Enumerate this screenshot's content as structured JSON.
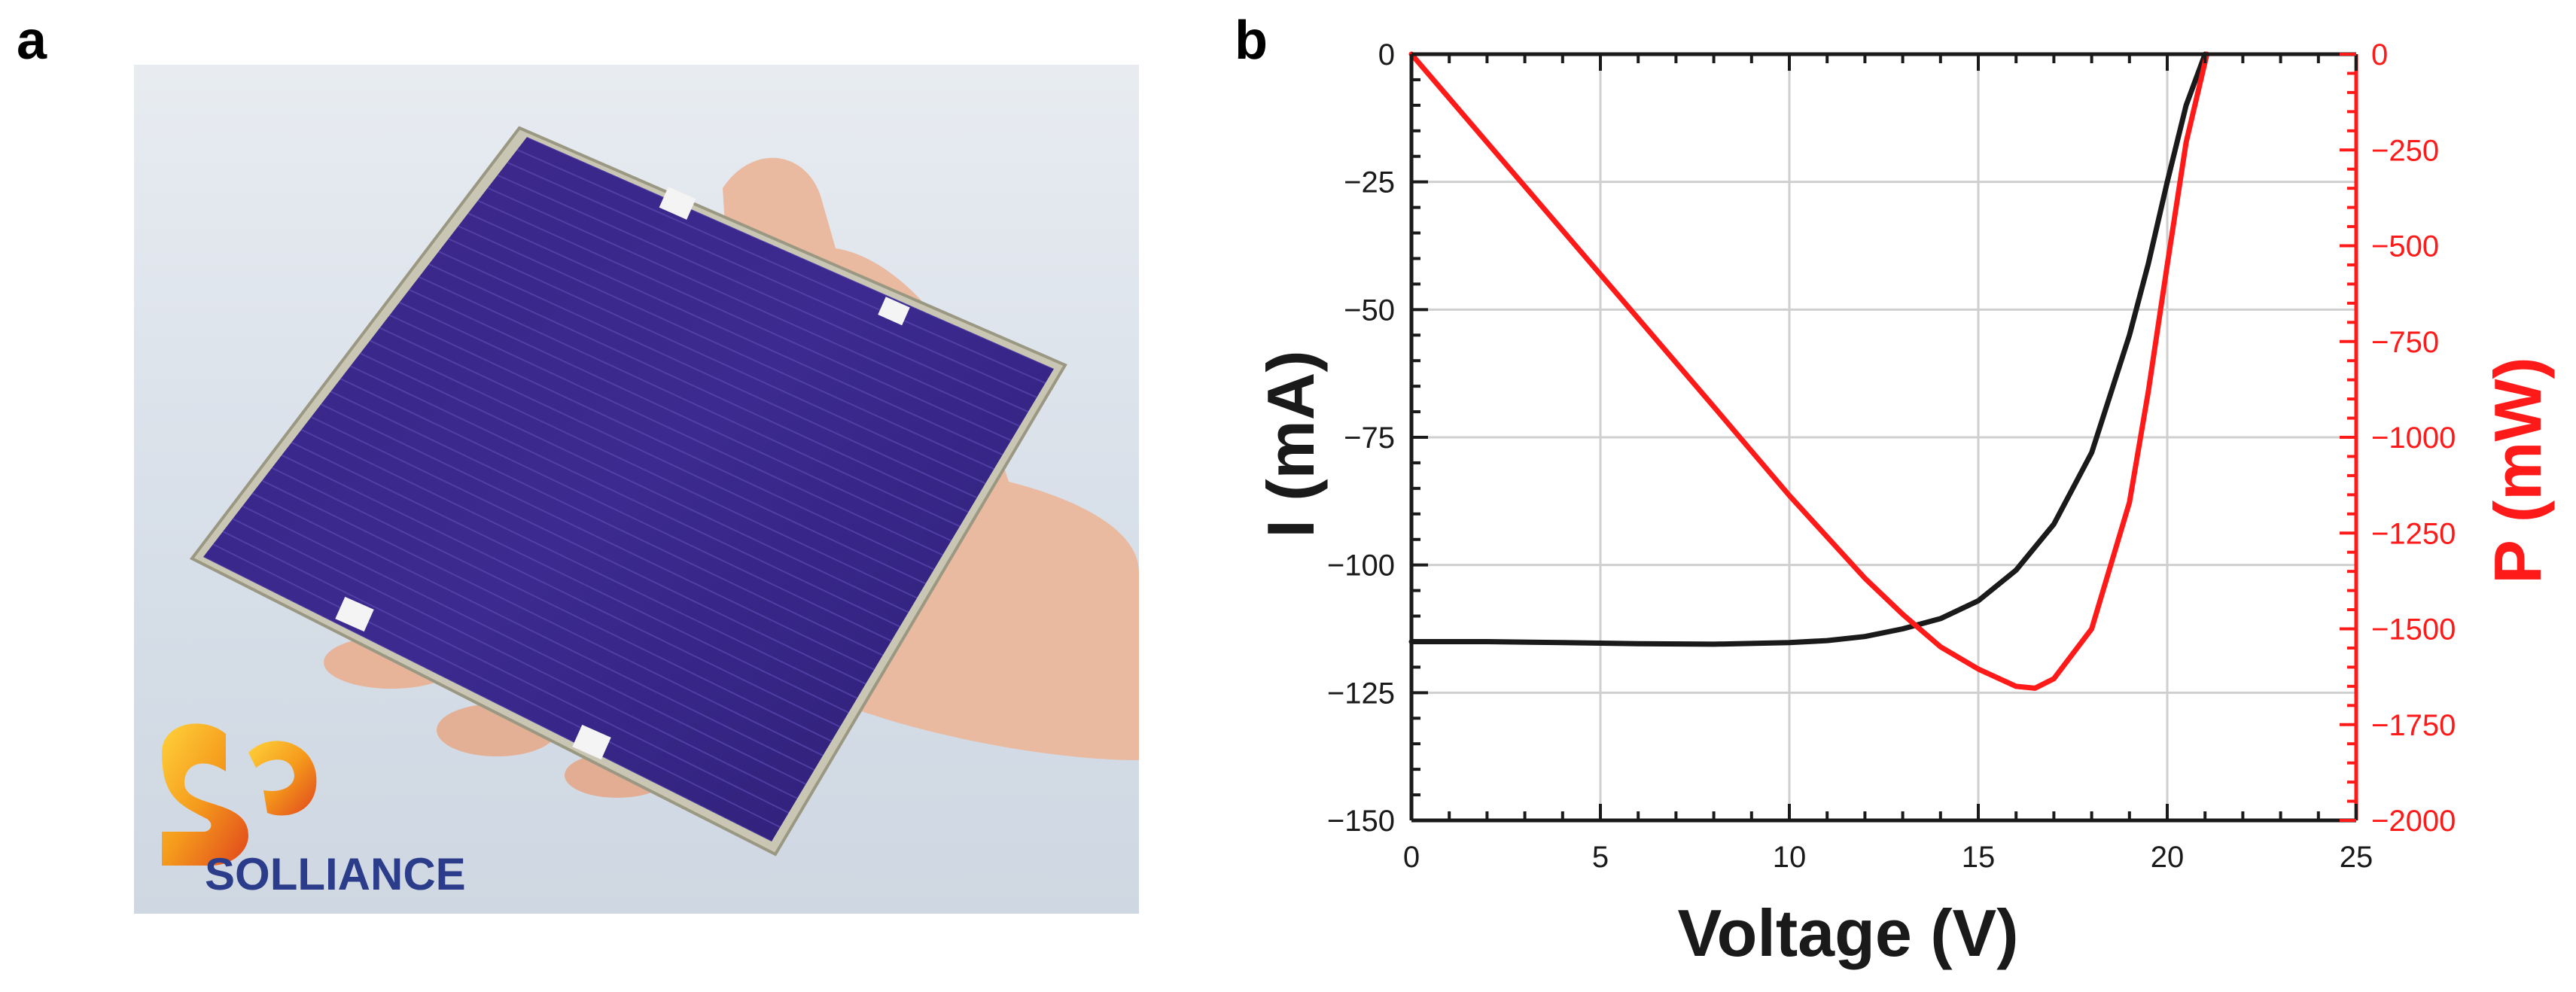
{
  "panels": {
    "a": "a",
    "b": "b"
  },
  "photo": {
    "logo_text": "SOLLIANCE",
    "colors": {
      "module": "#3a2a8a",
      "background": "#dfe6ee",
      "logo_text": "#2b3d8a",
      "logo_orange": "#f39a1a"
    }
  },
  "chart_data": {
    "type": "line",
    "xlabel": "Voltage (V)",
    "ylabel": "I (mA)",
    "y2label": "P (mW)",
    "xlim": [
      0,
      25
    ],
    "ylim": [
      -150,
      0
    ],
    "y2lim": [
      -2000,
      0
    ],
    "xticks": [
      "0",
      "5",
      "10",
      "15",
      "20",
      "25"
    ],
    "yticks": [
      "0",
      "−25",
      "−50",
      "−75",
      "−100",
      "−125",
      "−150"
    ],
    "y2ticks": [
      "0",
      "−250",
      "−500",
      "−750",
      "−1000",
      "−1250",
      "−1500",
      "−1750",
      "−2000"
    ],
    "grid": true,
    "series": [
      {
        "axis": "left",
        "color": "#1a1a1a",
        "x": [
          0,
          2,
          4,
          6,
          8,
          10,
          11,
          12,
          13,
          14,
          15,
          16,
          17,
          18,
          19,
          19.5,
          20,
          20.5,
          21
        ],
        "y": [
          -115,
          -115,
          -115.2,
          -115.4,
          -115.5,
          -115.2,
          -114.8,
          -114,
          -112.5,
          -110.5,
          -107,
          -101,
          -92,
          -78,
          -55,
          -41,
          -25,
          -10,
          0
        ]
      },
      {
        "axis": "right",
        "color": "#ff1a1a",
        "x": [
          0,
          2,
          4,
          6,
          8,
          10,
          12,
          13,
          14,
          15,
          16,
          16.5,
          17,
          18,
          19,
          19.5,
          20,
          20.5,
          21.05
        ],
        "y": [
          0,
          -230,
          -460,
          -690,
          -920,
          -1152,
          -1368,
          -1462,
          -1547,
          -1605,
          -1650,
          -1655,
          -1630,
          -1500,
          -1170,
          -880,
          -550,
          -230,
          0
        ]
      }
    ]
  }
}
